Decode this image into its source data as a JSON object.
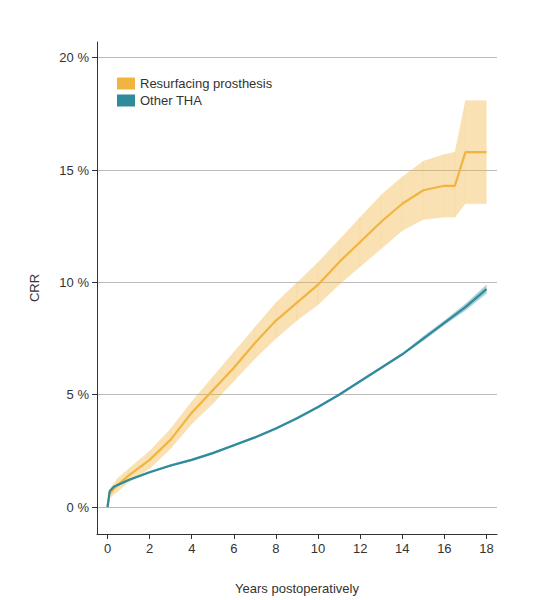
{
  "chart_data": {
    "type": "line",
    "x_label": "Years postoperatively",
    "y_label": "CRR",
    "xlim": [
      -0.5,
      18.5
    ],
    "xticks": [
      0,
      2,
      4,
      6,
      8,
      10,
      12,
      14,
      16,
      18
    ],
    "ylim": [
      -1.2,
      20.7
    ],
    "yticks": [
      {
        "value": 0,
        "label": "0 %"
      },
      {
        "value": 5,
        "label": "5 %"
      },
      {
        "value": 10,
        "label": "10 %"
      },
      {
        "value": 15,
        "label": "15 %"
      },
      {
        "value": 20,
        "label": "20 %"
      }
    ],
    "grid": true,
    "legend": "upper left",
    "series": [
      {
        "name": "Resurfacing prosthesis",
        "color": "#f2b441",
        "line_style": "solid",
        "x": [
          0,
          0.1,
          0.5,
          1,
          2,
          3,
          4,
          5,
          6,
          7,
          8,
          9,
          10,
          11,
          12,
          13,
          14,
          15,
          16,
          16.5,
          17,
          18
        ],
        "values": [
          0,
          0.6,
          1.0,
          1.4,
          2.1,
          3.0,
          4.2,
          5.2,
          6.2,
          7.3,
          8.3,
          9.1,
          9.9,
          10.9,
          11.8,
          12.7,
          13.5,
          14.1,
          14.3,
          14.3,
          15.8,
          15.8
        ],
        "lower": [
          0,
          0.4,
          0.7,
          1.1,
          1.7,
          2.6,
          3.7,
          4.6,
          5.6,
          6.6,
          7.5,
          8.3,
          9.0,
          9.9,
          10.7,
          11.5,
          12.3,
          12.8,
          12.9,
          12.9,
          13.5,
          13.5
        ],
        "upper": [
          0,
          0.8,
          1.3,
          1.7,
          2.5,
          3.5,
          4.7,
          5.8,
          6.9,
          8.0,
          9.1,
          10.0,
          10.9,
          11.9,
          12.9,
          13.9,
          14.7,
          15.4,
          15.7,
          15.8,
          18.1,
          18.1
        ]
      },
      {
        "name": "Other THA",
        "color": "#2f8a9c",
        "line_style": "solid",
        "x": [
          0,
          0.1,
          0.3,
          1,
          2,
          3,
          4,
          5,
          6,
          7,
          8,
          9,
          10,
          11,
          12,
          13,
          14,
          15,
          16,
          17,
          18
        ],
        "values": [
          0,
          0.7,
          0.9,
          1.2,
          1.55,
          1.85,
          2.1,
          2.4,
          2.75,
          3.1,
          3.5,
          3.95,
          4.45,
          5.0,
          5.6,
          6.2,
          6.8,
          7.5,
          8.2,
          8.9,
          9.7
        ],
        "lower": [
          0,
          0.65,
          0.85,
          1.15,
          1.5,
          1.8,
          2.05,
          2.35,
          2.7,
          3.05,
          3.45,
          3.9,
          4.4,
          4.95,
          5.55,
          6.15,
          6.75,
          7.4,
          8.1,
          8.75,
          9.5
        ],
        "upper": [
          0,
          0.75,
          0.95,
          1.25,
          1.6,
          1.9,
          2.15,
          2.45,
          2.8,
          3.15,
          3.55,
          4.0,
          4.5,
          5.05,
          5.65,
          6.25,
          6.85,
          7.6,
          8.3,
          9.05,
          9.9
        ]
      }
    ]
  }
}
